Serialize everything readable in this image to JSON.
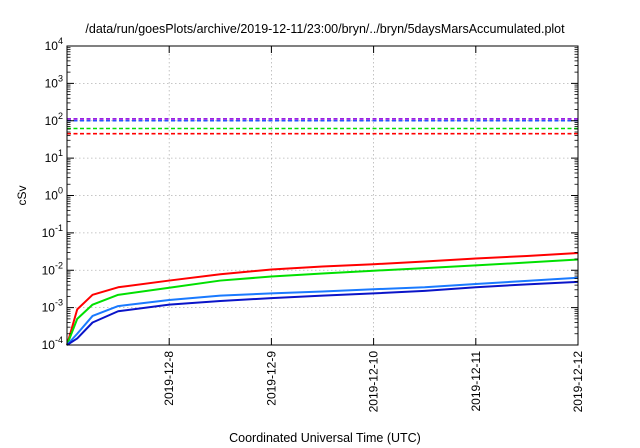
{
  "chart_data": {
    "type": "line",
    "title": "/data/run/goesPlots/archive/2019-12-11/23:00/bryn/../bryn/5daysMarsAccumulated.plot",
    "xlabel": "Coordinated Universal Time (UTC)",
    "ylabel": "cSv",
    "yscale": "log",
    "ylim": [
      0.0001,
      10000
    ],
    "xlim": [
      "2019-12-07",
      "2019-12-12"
    ],
    "x_ticks": [
      "2019-12-8",
      "2019-12-9",
      "2019-12-10",
      "2019-12-11",
      "2019-12-12"
    ],
    "y_ticks": [
      {
        "base": "10",
        "exp": "-4"
      },
      {
        "base": "10",
        "exp": "-3"
      },
      {
        "base": "10",
        "exp": "-2"
      },
      {
        "base": "10",
        "exp": "-1"
      },
      {
        "base": "10",
        "exp": "0"
      },
      {
        "base": "10",
        "exp": "1"
      },
      {
        "base": "10",
        "exp": "2"
      },
      {
        "base": "10",
        "exp": "3"
      },
      {
        "base": "10",
        "exp": "4"
      }
    ],
    "grid": true,
    "x": [
      "2019-12-07",
      "2019-12-07.1",
      "2019-12-07.25",
      "2019-12-07.5",
      "2019-12-08",
      "2019-12-08.5",
      "2019-12-09",
      "2019-12-09.5",
      "2019-12-10",
      "2019-12-10.5",
      "2019-12-11",
      "2019-12-11.5",
      "2019-12-12"
    ],
    "series": [
      {
        "color": "#ff0000",
        "dash": true,
        "values": [
          45,
          45,
          45,
          45,
          45,
          45,
          45,
          45,
          45,
          45,
          45,
          45,
          45
        ]
      },
      {
        "color": "#00e000",
        "dash": true,
        "values": [
          62,
          62,
          62,
          62,
          62,
          62,
          62,
          62,
          62,
          62,
          62,
          62,
          62
        ]
      },
      {
        "color": "#2a52ff",
        "dash": true,
        "values": [
          100,
          100,
          100,
          100,
          100,
          100,
          100,
          100,
          100,
          100,
          100,
          100,
          100
        ]
      },
      {
        "color": "#8a00e0",
        "dash": true,
        "values": [
          112,
          112,
          112,
          112,
          112,
          112,
          112,
          112,
          112,
          112,
          112,
          112,
          112
        ]
      },
      {
        "color": "#ff0000",
        "dash": false,
        "values": [
          0.0001,
          0.0009,
          0.0022,
          0.0035,
          0.0053,
          0.0078,
          0.0105,
          0.0126,
          0.0145,
          0.0171,
          0.0206,
          0.0241,
          0.0289
        ]
      },
      {
        "color": "#00e000",
        "dash": false,
        "values": [
          0.0001,
          0.0005,
          0.0012,
          0.0022,
          0.0034,
          0.0053,
          0.0068,
          0.0082,
          0.0097,
          0.0114,
          0.0135,
          0.0161,
          0.0194
        ]
      },
      {
        "color": "#1a7aff",
        "dash": false,
        "values": [
          0.0001,
          0.0002,
          0.0006,
          0.0011,
          0.0016,
          0.0021,
          0.0024,
          0.0027,
          0.0031,
          0.0035,
          0.0043,
          0.0052,
          0.0063
        ]
      },
      {
        "color": "#0a14c8",
        "dash": false,
        "values": [
          0.0001,
          0.00015,
          0.0004,
          0.0008,
          0.0012,
          0.0015,
          0.0018,
          0.0021,
          0.0024,
          0.0028,
          0.0035,
          0.0042,
          0.0049
        ]
      }
    ]
  }
}
